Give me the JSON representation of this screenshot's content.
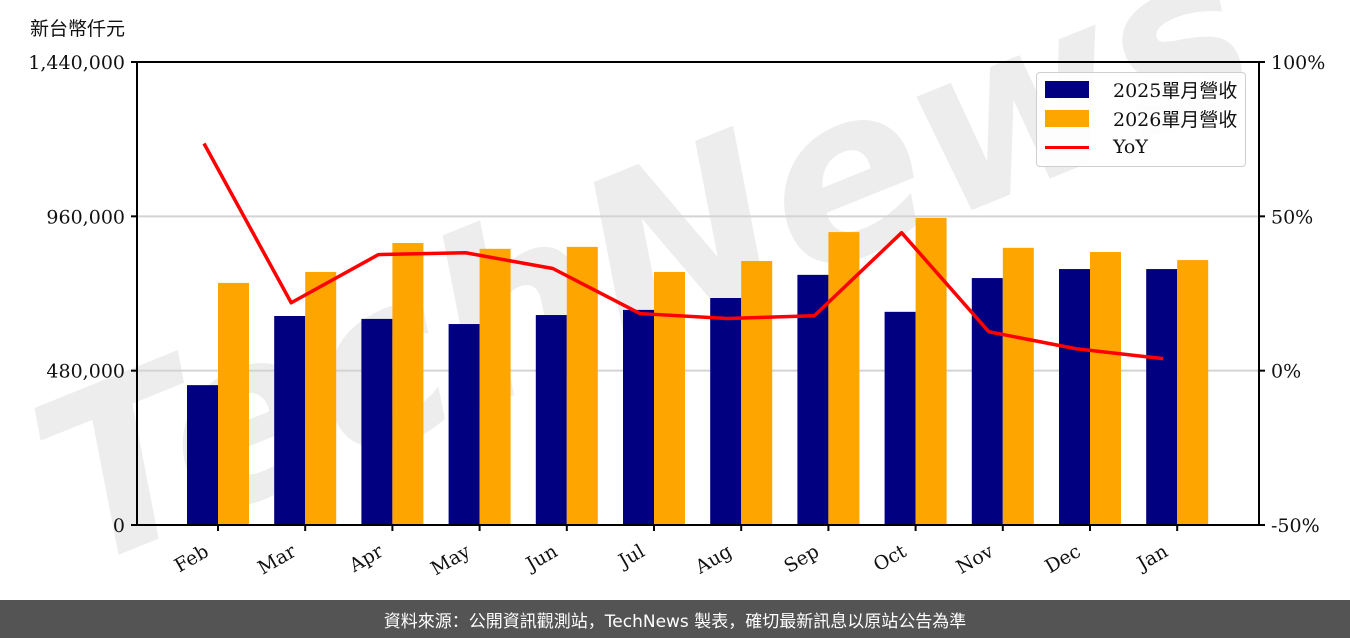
{
  "unit_label": "新台幣仟元",
  "footer_text": "資料來源：公開資訊觀測站，TechNews 製表，確切最新訊息以原站公告為準",
  "watermark": "TechNews",
  "legend": [
    {
      "label": "2025單月營收",
      "color": "#000080",
      "kind": "bar"
    },
    {
      "label": "2026單月營收",
      "color": "#FFA500",
      "kind": "bar"
    },
    {
      "label": "YoY",
      "color": "#FF0000",
      "kind": "line"
    }
  ],
  "chart_data": {
    "type": "bar",
    "title": "",
    "xlabel": "",
    "ylabel": "新台幣仟元",
    "categories": [
      "Feb",
      "Mar",
      "Apr",
      "May",
      "Jun",
      "Jul",
      "Aug",
      "Sep",
      "Oct",
      "Nov",
      "Dec",
      "Jan"
    ],
    "series": [
      {
        "name": "2025單月營收",
        "type": "bar",
        "axis": "left",
        "color": "#000080",
        "values": [
          435000,
          650000,
          641000,
          625000,
          653000,
          669000,
          706000,
          778000,
          663000,
          768000,
          796000,
          796000
        ]
      },
      {
        "name": "2026單月營收",
        "type": "bar",
        "axis": "left",
        "color": "#FFA500",
        "values": [
          753000,
          787000,
          877000,
          859000,
          865000,
          787000,
          821000,
          911000,
          955000,
          862000,
          849000,
          824000
        ]
      },
      {
        "name": "YoY",
        "type": "line",
        "axis": "right",
        "color": "#FF0000",
        "values": [
          73.6,
          22.0,
          37.6,
          38.2,
          33.1,
          18.5,
          16.9,
          17.8,
          44.7,
          12.6,
          7.1,
          3.9
        ]
      }
    ],
    "ylim": [
      0,
      1440000
    ],
    "y_ticks": [
      "0",
      "480,000",
      "960,000",
      "1,440,000"
    ],
    "y_tick_values": [
      0,
      480000,
      960000,
      1440000
    ],
    "y2lim": [
      -50,
      100
    ],
    "y2_ticks": [
      "-50%",
      "0%",
      "50%",
      "100%"
    ],
    "y2_tick_values": [
      -50,
      0,
      50,
      100
    ],
    "grid": "horizontal",
    "legend_position": "upper right"
  }
}
